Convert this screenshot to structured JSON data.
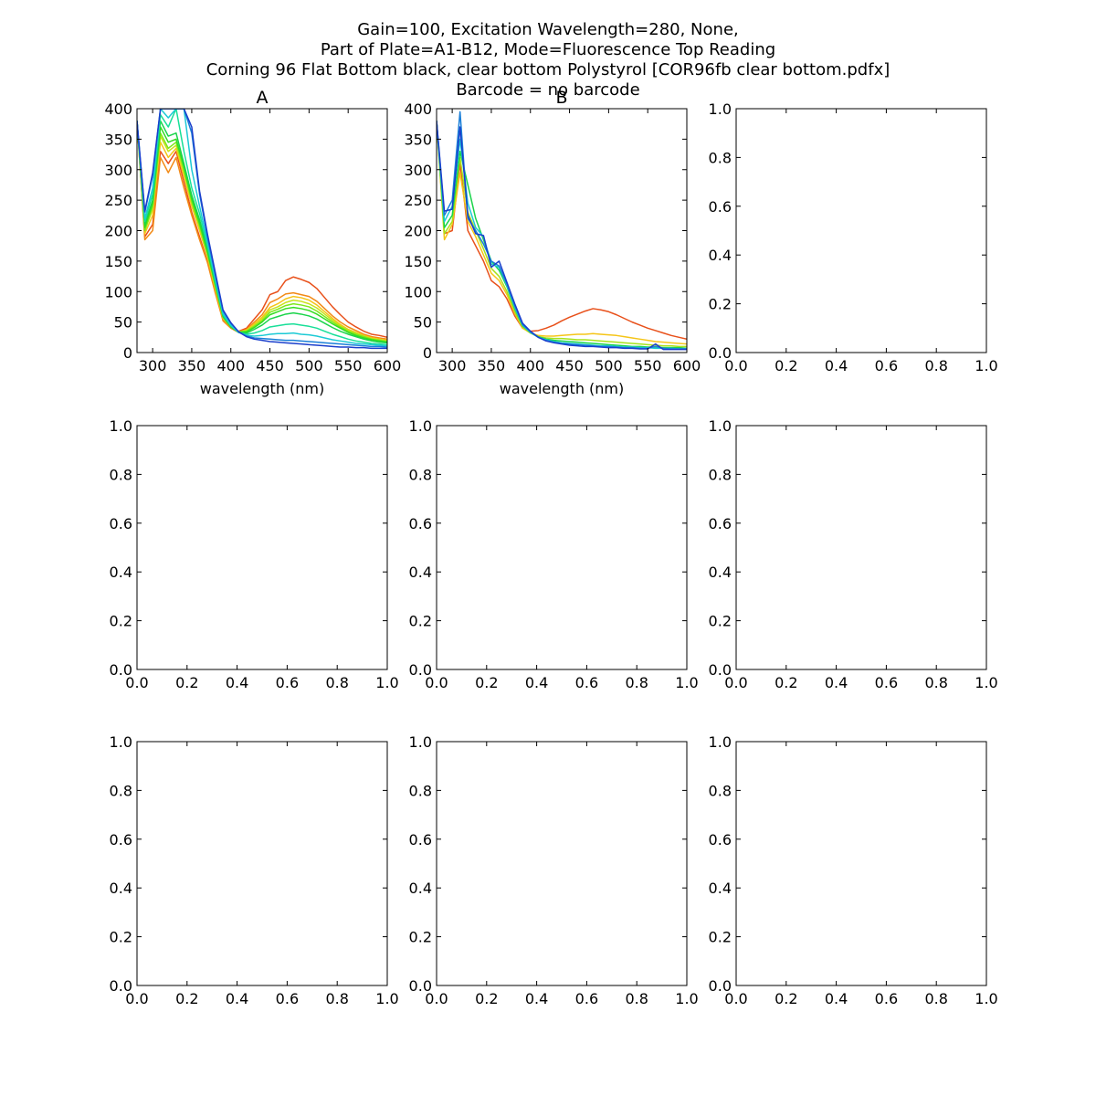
{
  "figure": {
    "title_lines": [
      "Gain=100, Excitation Wavelength=280, None,",
      "Part of Plate=A1-B12, Mode=Fluorescence Top Reading",
      "Corning 96 Flat Bottom black, clear bottom Polystyrol  [COR96fb clear bottom.pdfx]",
      "Barcode = no barcode"
    ]
  },
  "chart_data": [
    {
      "type": "line",
      "title": "A",
      "xlabel": "wavelength (nm)",
      "ylabel": "",
      "xlim": [
        280,
        600
      ],
      "ylim": [
        0,
        400
      ],
      "xticks": [
        300,
        350,
        400,
        450,
        500,
        550,
        600
      ],
      "yticks": [
        0,
        50,
        100,
        150,
        200,
        250,
        300,
        350,
        400
      ],
      "x": [
        280,
        290,
        300,
        310,
        320,
        330,
        340,
        350,
        360,
        370,
        380,
        390,
        400,
        410,
        420,
        430,
        440,
        450,
        460,
        470,
        480,
        490,
        500,
        510,
        520,
        530,
        540,
        550,
        560,
        570,
        580,
        590,
        600
      ],
      "series": [
        {
          "color": "#e8501a",
          "values": [
            380,
            190,
            210,
            330,
            310,
            330,
            280,
            230,
            190,
            150,
            100,
            55,
            42,
            35,
            40,
            55,
            70,
            95,
            100,
            118,
            124,
            120,
            115,
            105,
            90,
            75,
            62,
            50,
            42,
            35,
            30,
            28,
            25
          ]
        },
        {
          "color": "#f28a16",
          "values": [
            380,
            185,
            200,
            320,
            295,
            320,
            270,
            225,
            185,
            148,
            98,
            52,
            40,
            33,
            38,
            50,
            62,
            82,
            88,
            96,
            98,
            95,
            92,
            84,
            72,
            60,
            50,
            42,
            36,
            30,
            26,
            24,
            22
          ]
        },
        {
          "color": "#f5c518",
          "values": [
            380,
            195,
            225,
            345,
            320,
            335,
            290,
            240,
            200,
            158,
            105,
            56,
            42,
            34,
            37,
            47,
            58,
            74,
            80,
            88,
            92,
            90,
            86,
            78,
            67,
            56,
            46,
            38,
            33,
            28,
            24,
            22,
            20
          ]
        },
        {
          "color": "#c9e21a",
          "values": [
            380,
            200,
            235,
            355,
            330,
            340,
            295,
            245,
            205,
            160,
            108,
            57,
            42,
            34,
            36,
            45,
            55,
            70,
            75,
            82,
            86,
            84,
            80,
            73,
            63,
            53,
            44,
            37,
            32,
            27,
            23,
            21,
            19
          ]
        },
        {
          "color": "#7de81a",
          "values": [
            380,
            200,
            240,
            360,
            335,
            345,
            300,
            248,
            208,
            163,
            110,
            58,
            42,
            34,
            35,
            43,
            52,
            66,
            71,
            77,
            80,
            78,
            75,
            68,
            59,
            50,
            42,
            35,
            30,
            26,
            22,
            20,
            18
          ]
        },
        {
          "color": "#33dd20",
          "values": [
            380,
            205,
            245,
            370,
            345,
            350,
            305,
            252,
            212,
            166,
            112,
            59,
            42,
            33,
            34,
            41,
            50,
            62,
            67,
            72,
            74,
            72,
            69,
            63,
            55,
            47,
            40,
            33,
            28,
            24,
            21,
            19,
            17
          ]
        },
        {
          "color": "#1ad44a",
          "values": [
            380,
            210,
            250,
            380,
            355,
            360,
            310,
            258,
            218,
            170,
            115,
            60,
            43,
            33,
            32,
            38,
            45,
            55,
            59,
            63,
            65,
            63,
            60,
            55,
            48,
            41,
            35,
            30,
            26,
            22,
            19,
            17,
            16
          ]
        },
        {
          "color": "#18df98",
          "values": [
            380,
            215,
            260,
            390,
            370,
            400,
            330,
            270,
            228,
            176,
            118,
            62,
            44,
            33,
            30,
            32,
            36,
            42,
            44,
            46,
            47,
            45,
            43,
            40,
            35,
            30,
            26,
            22,
            19,
            17,
            15,
            14,
            13
          ]
        },
        {
          "color": "#1ccad5",
          "values": [
            380,
            220,
            270,
            400,
            385,
            400,
            400,
            300,
            240,
            182,
            122,
            64,
            45,
            33,
            28,
            27,
            28,
            30,
            31,
            31,
            32,
            30,
            29,
            27,
            24,
            21,
            19,
            17,
            15,
            14,
            13,
            12,
            11
          ]
        },
        {
          "color": "#1a7fd8",
          "values": [
            380,
            230,
            290,
            400,
            400,
            400,
            400,
            360,
            260,
            190,
            128,
            68,
            48,
            34,
            27,
            24,
            23,
            22,
            21,
            20,
            20,
            19,
            18,
            17,
            16,
            15,
            14,
            13,
            12,
            11,
            10,
            10,
            9
          ]
        },
        {
          "color": "#1a3fcc",
          "values": [
            380,
            232,
            295,
            400,
            400,
            400,
            400,
            370,
            265,
            195,
            132,
            70,
            49,
            34,
            26,
            22,
            20,
            18,
            17,
            16,
            15,
            14,
            13,
            12,
            11,
            10,
            9,
            9,
            8,
            8,
            7,
            7,
            7
          ]
        }
      ]
    },
    {
      "type": "line",
      "title": "B",
      "xlabel": "wavelength (nm)",
      "ylabel": "",
      "xlim": [
        280,
        600
      ],
      "ylim": [
        0,
        400
      ],
      "xticks": [
        300,
        350,
        400,
        450,
        500,
        550,
        600
      ],
      "yticks": [
        0,
        50,
        100,
        150,
        200,
        250,
        300,
        350,
        400
      ],
      "x": [
        280,
        290,
        300,
        310,
        320,
        330,
        340,
        350,
        360,
        370,
        380,
        390,
        400,
        410,
        420,
        430,
        440,
        450,
        460,
        470,
        480,
        490,
        500,
        510,
        520,
        530,
        540,
        550,
        560,
        570,
        580,
        590,
        600
      ],
      "series": [
        {
          "color": "#e8501a",
          "values": [
            380,
            195,
            200,
            310,
            200,
            175,
            150,
            118,
            108,
            88,
            60,
            40,
            35,
            36,
            40,
            45,
            52,
            58,
            63,
            68,
            72,
            70,
            67,
            62,
            56,
            50,
            45,
            40,
            36,
            32,
            28,
            25,
            22
          ]
        },
        {
          "color": "#f5c518",
          "values": [
            380,
            185,
            210,
            295,
            215,
            190,
            160,
            130,
            118,
            95,
            64,
            40,
            32,
            28,
            27,
            27,
            28,
            29,
            30,
            30,
            31,
            30,
            29,
            28,
            26,
            24,
            22,
            20,
            18,
            17,
            16,
            15,
            14
          ]
        },
        {
          "color": "#a7e21a",
          "values": [
            380,
            195,
            215,
            320,
            230,
            200,
            170,
            138,
            125,
            100,
            67,
            42,
            32,
            26,
            24,
            23,
            23,
            22,
            21,
            21,
            20,
            19,
            18,
            17,
            16,
            15,
            14,
            13,
            12,
            11,
            11,
            10,
            10
          ]
        },
        {
          "color": "#1ad44a",
          "values": [
            380,
            205,
            225,
            330,
            275,
            220,
            185,
            150,
            135,
            108,
            72,
            44,
            33,
            26,
            22,
            20,
            19,
            18,
            17,
            16,
            15,
            14,
            13,
            12,
            11,
            10,
            10,
            9,
            9,
            8,
            8,
            8,
            7
          ]
        },
        {
          "color": "#1ccad5",
          "values": [
            380,
            215,
            240,
            350,
            245,
            205,
            190,
            145,
            140,
            110,
            74,
            45,
            33,
            25,
            21,
            18,
            16,
            15,
            14,
            13,
            12,
            11,
            11,
            10,
            9,
            9,
            8,
            8,
            7,
            7,
            7,
            6,
            6
          ]
        },
        {
          "color": "#1a7fd8",
          "values": [
            380,
            225,
            250,
            395,
            220,
            200,
            178,
            150,
            142,
            112,
            77,
            46,
            34,
            25,
            20,
            17,
            15,
            14,
            13,
            12,
            11,
            10,
            10,
            9,
            8,
            8,
            7,
            7,
            10,
            7,
            6,
            6,
            6
          ]
        },
        {
          "color": "#1a3fcc",
          "values": [
            380,
            232,
            235,
            370,
            225,
            195,
            192,
            140,
            150,
            115,
            80,
            48,
            35,
            25,
            19,
            16,
            14,
            12,
            11,
            10,
            10,
            9,
            8,
            8,
            7,
            7,
            6,
            6,
            14,
            5,
            5,
            5,
            5
          ]
        }
      ]
    },
    {
      "type": "line",
      "title": "",
      "xlabel": "",
      "ylabel": "",
      "xlim": [
        0,
        1
      ],
      "ylim": [
        0,
        1
      ],
      "xticks": [
        0.0,
        0.2,
        0.4,
        0.6,
        0.8,
        1.0
      ],
      "yticks": [
        0.0,
        0.2,
        0.4,
        0.6,
        0.8,
        1.0
      ],
      "x": [],
      "series": []
    },
    {
      "type": "line",
      "title": "",
      "xlabel": "",
      "ylabel": "",
      "xlim": [
        0,
        1
      ],
      "ylim": [
        0,
        1
      ],
      "xticks": [
        0.0,
        0.2,
        0.4,
        0.6,
        0.8,
        1.0
      ],
      "yticks": [
        0.0,
        0.2,
        0.4,
        0.6,
        0.8,
        1.0
      ],
      "x": [],
      "series": []
    },
    {
      "type": "line",
      "title": "",
      "xlabel": "",
      "ylabel": "",
      "xlim": [
        0,
        1
      ],
      "ylim": [
        0,
        1
      ],
      "xticks": [
        0.0,
        0.2,
        0.4,
        0.6,
        0.8,
        1.0
      ],
      "yticks": [
        0.0,
        0.2,
        0.4,
        0.6,
        0.8,
        1.0
      ],
      "x": [],
      "series": []
    },
    {
      "type": "line",
      "title": "",
      "xlabel": "",
      "ylabel": "",
      "xlim": [
        0,
        1
      ],
      "ylim": [
        0,
        1
      ],
      "xticks": [
        0.0,
        0.2,
        0.4,
        0.6,
        0.8,
        1.0
      ],
      "yticks": [
        0.0,
        0.2,
        0.4,
        0.6,
        0.8,
        1.0
      ],
      "x": [],
      "series": []
    },
    {
      "type": "line",
      "title": "",
      "xlabel": "",
      "ylabel": "",
      "xlim": [
        0,
        1
      ],
      "ylim": [
        0,
        1
      ],
      "xticks": [
        0.0,
        0.2,
        0.4,
        0.6,
        0.8,
        1.0
      ],
      "yticks": [
        0.0,
        0.2,
        0.4,
        0.6,
        0.8,
        1.0
      ],
      "x": [],
      "series": []
    },
    {
      "type": "line",
      "title": "",
      "xlabel": "",
      "ylabel": "",
      "xlim": [
        0,
        1
      ],
      "ylim": [
        0,
        1
      ],
      "xticks": [
        0.0,
        0.2,
        0.4,
        0.6,
        0.8,
        1.0
      ],
      "yticks": [
        0.0,
        0.2,
        0.4,
        0.6,
        0.8,
        1.0
      ],
      "x": [],
      "series": []
    },
    {
      "type": "line",
      "title": "",
      "xlabel": "",
      "ylabel": "",
      "xlim": [
        0,
        1
      ],
      "ylim": [
        0,
        1
      ],
      "xticks": [
        0.0,
        0.2,
        0.4,
        0.6,
        0.8,
        1.0
      ],
      "yticks": [
        0.0,
        0.2,
        0.4,
        0.6,
        0.8,
        1.0
      ],
      "x": [],
      "series": []
    }
  ]
}
